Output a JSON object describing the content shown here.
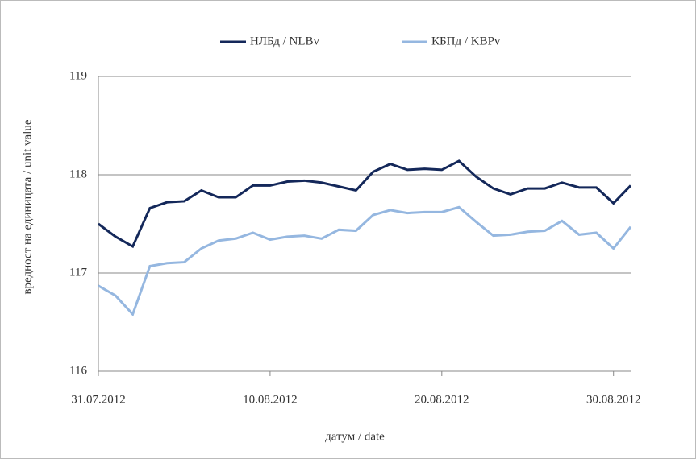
{
  "chart_data": {
    "type": "line",
    "xlabel": "датум / date",
    "ylabel": "вредност на единицата / unit value",
    "x": [
      "31.07.2012",
      "01.08.2012",
      "02.08.2012",
      "03.08.2012",
      "04.08.2012",
      "05.08.2012",
      "06.08.2012",
      "07.08.2012",
      "08.08.2012",
      "09.08.2012",
      "10.08.2012",
      "11.08.2012",
      "12.08.2012",
      "13.08.2012",
      "14.08.2012",
      "15.08.2012",
      "16.08.2012",
      "17.08.2012",
      "18.08.2012",
      "19.08.2012",
      "20.08.2012",
      "21.08.2012",
      "22.08.2012",
      "23.08.2012",
      "24.08.2012",
      "25.08.2012",
      "26.08.2012",
      "27.08.2012",
      "28.08.2012",
      "29.08.2012",
      "30.08.2012",
      "31.08.2012"
    ],
    "series": [
      {
        "name": "НЛБд / NLBv",
        "color": "#14285a",
        "values": [
          117.5,
          117.37,
          117.27,
          117.66,
          117.72,
          117.73,
          117.84,
          117.77,
          117.77,
          117.89,
          117.89,
          117.93,
          117.94,
          117.92,
          117.88,
          117.84,
          118.03,
          118.11,
          118.05,
          118.06,
          118.05,
          118.14,
          117.98,
          117.86,
          117.8,
          117.86,
          117.86,
          117.92,
          117.87,
          117.87,
          117.71,
          117.89
        ]
      },
      {
        "name": "КБПд / KBPv",
        "color": "#95b7e0",
        "values": [
          116.87,
          116.77,
          116.58,
          117.07,
          117.1,
          117.11,
          117.25,
          117.33,
          117.35,
          117.41,
          117.34,
          117.37,
          117.38,
          117.35,
          117.44,
          117.43,
          117.59,
          117.64,
          117.61,
          117.62,
          117.62,
          117.67,
          117.52,
          117.38,
          117.39,
          117.42,
          117.43,
          117.53,
          117.39,
          117.41,
          117.25,
          117.47
        ]
      }
    ],
    "xlim": [
      "31.07.2012",
      "31.08.2012"
    ],
    "xticks": [
      "31.07.2012",
      "10.08.2012",
      "20.08.2012",
      "30.08.2012"
    ],
    "ylim": [
      116,
      119
    ],
    "yticks": [
      116,
      117,
      118,
      119
    ],
    "grid": true,
    "legend": "top"
  }
}
